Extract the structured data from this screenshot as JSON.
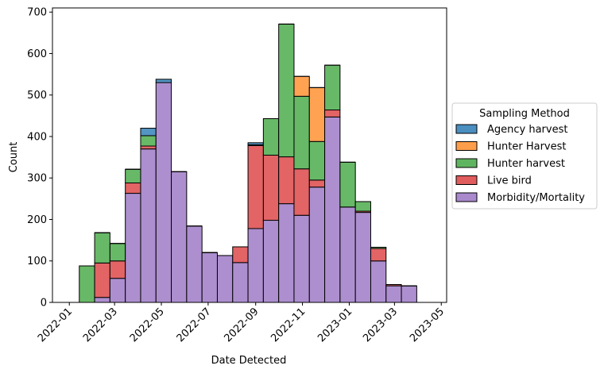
{
  "chart_data": {
    "type": "bar",
    "stacked": true,
    "xlabel": "Date Detected",
    "ylabel": "Count",
    "ylim": [
      0,
      710
    ],
    "xlim": [
      "2021-12-10",
      "2023-05-08"
    ],
    "yticks": [
      0,
      100,
      200,
      300,
      400,
      500,
      600,
      700
    ],
    "xticks": [
      "2022-01",
      "2022-03",
      "2022-05",
      "2022-07",
      "2022-09",
      "2022-11",
      "2023-01",
      "2023-03",
      "2023-05"
    ],
    "bin_edges": [
      "2022-01-14",
      "2022-02-03",
      "2022-02-23",
      "2022-03-15",
      "2022-04-04",
      "2022-04-24",
      "2022-05-14",
      "2022-06-03",
      "2022-06-23",
      "2022-07-13",
      "2022-08-02",
      "2022-08-22",
      "2022-09-11",
      "2022-10-01",
      "2022-10-21",
      "2022-11-10",
      "2022-11-30",
      "2022-12-20",
      "2023-01-09",
      "2023-01-29",
      "2023-02-18",
      "2023-03-10",
      "2023-03-30",
      "2023-04-19"
    ],
    "grid": false,
    "legend": {
      "title": "Sampling Method",
      "placement": "right"
    },
    "series": [
      {
        "name": "Morbidity/Mortality",
        "color": "#a989cc",
        "values": [
          0,
          12,
          58,
          263,
          370,
          530,
          315,
          184,
          120,
          113,
          96,
          178,
          198,
          238,
          210,
          278,
          447,
          230,
          217,
          100,
          40,
          40,
          0
        ]
      },
      {
        "name": "Live bird",
        "color": "#e05c5d",
        "values": [
          0,
          83,
          42,
          25,
          7,
          0,
          0,
          0,
          0,
          0,
          38,
          200,
          157,
          113,
          112,
          17,
          17,
          0,
          3,
          30,
          3,
          0,
          0
        ]
      },
      {
        "name": "Hunter harvest",
        "color": "#5fb55f",
        "values": [
          88,
          73,
          42,
          33,
          25,
          0,
          0,
          0,
          0,
          0,
          0,
          2,
          88,
          320,
          175,
          93,
          108,
          108,
          23,
          3,
          0,
          0,
          0
        ]
      },
      {
        "name": "Hunter Harvest",
        "color": "#ff9e4a",
        "values": [
          0,
          0,
          0,
          0,
          0,
          0,
          0,
          0,
          0,
          0,
          0,
          0,
          0,
          0,
          48,
          130,
          0,
          0,
          0,
          0,
          0,
          0,
          0
        ]
      },
      {
        "name": "Agency harvest",
        "color": "#4a8fc0",
        "values": [
          0,
          0,
          0,
          0,
          18,
          8,
          0,
          0,
          0,
          0,
          0,
          5,
          0,
          0,
          0,
          0,
          0,
          0,
          0,
          0,
          0,
          0,
          0
        ]
      }
    ]
  }
}
